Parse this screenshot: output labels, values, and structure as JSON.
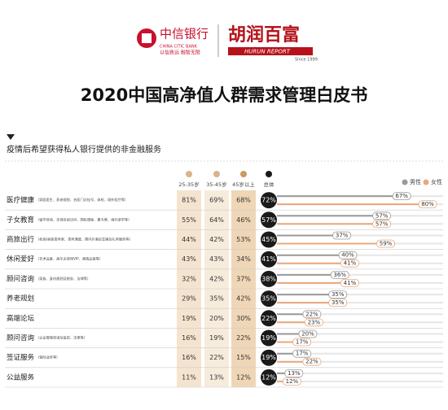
{
  "header": {
    "bank_name": "中信银行",
    "bank_name_en": "CHINA CITIC BANK",
    "bank_slogan": "以信致远 融智无限",
    "hurun_name": "胡润百富",
    "hurun_name_en": "HURUN REPORT",
    "hurun_since": "Since 1999",
    "title": "2020中国高净值人群需求管理白皮书"
  },
  "subtitle": "疫情后希望获得私人银行提供的非金融服务",
  "columns": [
    "25-35岁",
    "35-45岁",
    "45岁以上",
    "总体"
  ],
  "legend": [
    "男性",
    "女性"
  ],
  "rows": [
    {
      "name": "医疗健康",
      "detail": "（家庭医生、养老规划、名医门诊挂号、体检、境外医疗等）",
      "age": [
        "81%",
        "69%",
        "68%"
      ],
      "overall": "72%",
      "male": 67,
      "male_label": "67%",
      "female": 80,
      "female_label": "80%"
    },
    {
      "name": "子女教育",
      "detail": "（留学咨询、全球名校访问、国际课程、夏令营、境外游学等）",
      "age": [
        "55%",
        "64%",
        "46%"
      ],
      "overall": "57%",
      "male": 57,
      "male_label": "57%",
      "female": 57,
      "female_label": "57%"
    },
    {
      "name": "商旅出行",
      "detail": "（机场/高铁贵宾室、贵宾通道、国内外酒店车辆及礼宾服务等）",
      "age": [
        "44%",
        "42%",
        "53%"
      ],
      "overall": "45%",
      "male": 37,
      "male_label": "37%",
      "female": 59,
      "female_label": "59%"
    },
    {
      "name": "休闲爱好",
      "detail": "（艺术品鉴、高尔夫球场VIP、酒类品鉴等）",
      "age": [
        "43%",
        "43%",
        "34%"
      ],
      "overall": "41%",
      "male": 40,
      "male_label": "40%",
      "female": 41,
      "female_label": "41%"
    },
    {
      "name": "顾问咨询",
      "detail": "（家族、身份规划及税务、法律等）",
      "age": [
        "32%",
        "42%",
        "37%"
      ],
      "overall": "38%",
      "male": 36,
      "male_label": "36%",
      "female": 41,
      "female_label": "41%"
    },
    {
      "name": "养老规划",
      "detail": "",
      "age": [
        "29%",
        "35%",
        "42%"
      ],
      "overall": "35%",
      "male": 35,
      "male_label": "35%",
      "female": 35,
      "female_label": "35%"
    },
    {
      "name": "高端论坛",
      "detail": "",
      "age": [
        "19%",
        "20%",
        "30%"
      ],
      "overall": "22%",
      "male": 22,
      "male_label": "22%",
      "female": 23,
      "female_label": "23%"
    },
    {
      "name": "顾问咨询",
      "detail": "（企业管理咨询及投资、法律等）",
      "age": [
        "16%",
        "19%",
        "22%"
      ],
      "overall": "19%",
      "male": 20,
      "male_label": "20%",
      "female": 17,
      "female_label": "17%"
    },
    {
      "name": "签证服务",
      "detail": "（保险业务等）",
      "age": [
        "16%",
        "22%",
        "15%"
      ],
      "overall": "19%",
      "male": 17,
      "male_label": "17%",
      "female": 22,
      "female_label": "22%"
    },
    {
      "name": "公益服务",
      "detail": "",
      "age": [
        "11%",
        "13%",
        "12%"
      ],
      "overall": "12%",
      "male": 13,
      "male_label": "13%",
      "female": 12,
      "female_label": "12%"
    }
  ]
}
